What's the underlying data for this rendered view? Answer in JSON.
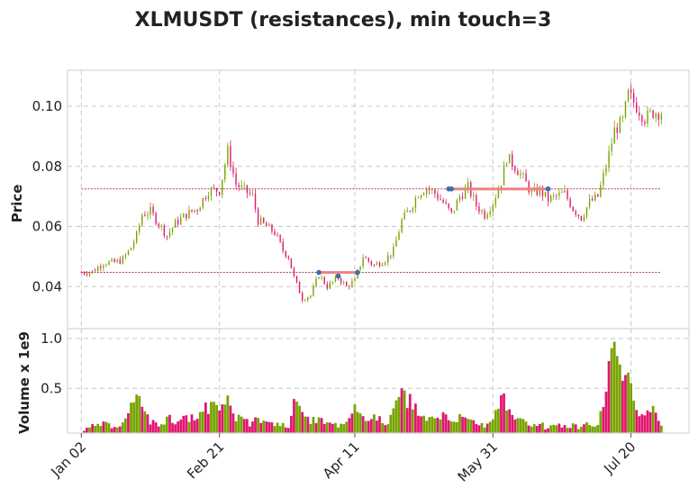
{
  "chart_data": {
    "type": "candlestick",
    "title": "XLMUSDT (resistances), min touch=3",
    "price_panel": {
      "ylabel": "Price",
      "yticks": [
        0.04,
        0.06,
        0.08,
        0.1
      ],
      "ytick_labels": [
        "0.04",
        "0.06",
        "0.08",
        "0.10"
      ],
      "ylim": [
        0.026,
        0.112
      ]
    },
    "volume_panel": {
      "ylabel": "Volume x 1e9",
      "yticks": [
        0.5,
        1.0
      ],
      "ytick_labels": [
        "0.5",
        "1.0"
      ],
      "ylim": [
        0.05,
        1.1
      ]
    },
    "x_axis": {
      "tick_labels": [
        "Jan 02",
        "Feb 21",
        "Apr 11",
        "May 31",
        "Jul 20"
      ],
      "tick_days": [
        0,
        50,
        99,
        149,
        199
      ],
      "xlim": [
        -5,
        220
      ]
    },
    "grid": true,
    "colors": {
      "up": "#77a300",
      "down": "#e0176f",
      "resistance": "#f08080",
      "level_line": "#b22222",
      "touch_point": "#3a6fa8"
    },
    "price_series": [
      {
        "day": 0,
        "close": 0.0447
      },
      {
        "day": 4,
        "close": 0.045
      },
      {
        "day": 8,
        "close": 0.048
      },
      {
        "day": 12,
        "close": 0.048
      },
      {
        "day": 15,
        "close": 0.049
      },
      {
        "day": 18,
        "close": 0.053
      },
      {
        "day": 20,
        "close": 0.057
      },
      {
        "day": 22,
        "close": 0.064
      },
      {
        "day": 25,
        "close": 0.065
      },
      {
        "day": 28,
        "close": 0.061
      },
      {
        "day": 31,
        "close": 0.057
      },
      {
        "day": 34,
        "close": 0.061
      },
      {
        "day": 38,
        "close": 0.064
      },
      {
        "day": 42,
        "close": 0.066
      },
      {
        "day": 46,
        "close": 0.072
      },
      {
        "day": 50,
        "close": 0.072
      },
      {
        "day": 53,
        "close": 0.085
      },
      {
        "day": 56,
        "close": 0.074
      },
      {
        "day": 59,
        "close": 0.072
      },
      {
        "day": 62,
        "close": 0.07
      },
      {
        "day": 64,
        "close": 0.062
      },
      {
        "day": 67,
        "close": 0.06
      },
      {
        "day": 70,
        "close": 0.058
      },
      {
        "day": 73,
        "close": 0.052
      },
      {
        "day": 75,
        "close": 0.05
      },
      {
        "day": 77,
        "close": 0.043
      },
      {
        "day": 80,
        "close": 0.036
      },
      {
        "day": 83,
        "close": 0.037
      },
      {
        "day": 86,
        "close": 0.044
      },
      {
        "day": 89,
        "close": 0.04
      },
      {
        "day": 93,
        "close": 0.043
      },
      {
        "day": 96,
        "close": 0.04
      },
      {
        "day": 99,
        "close": 0.042
      },
      {
        "day": 102,
        "close": 0.05
      },
      {
        "day": 106,
        "close": 0.047
      },
      {
        "day": 110,
        "close": 0.049
      },
      {
        "day": 113,
        "close": 0.052
      },
      {
        "day": 116,
        "close": 0.062
      },
      {
        "day": 119,
        "close": 0.066
      },
      {
        "day": 122,
        "close": 0.071
      },
      {
        "day": 125,
        "close": 0.073
      },
      {
        "day": 128,
        "close": 0.071
      },
      {
        "day": 131,
        "close": 0.068
      },
      {
        "day": 134,
        "close": 0.064
      },
      {
        "day": 137,
        "close": 0.07
      },
      {
        "day": 140,
        "close": 0.073
      },
      {
        "day": 143,
        "close": 0.067
      },
      {
        "day": 146,
        "close": 0.064
      },
      {
        "day": 149,
        "close": 0.068
      },
      {
        "day": 152,
        "close": 0.075
      },
      {
        "day": 154,
        "close": 0.083
      },
      {
        "day": 157,
        "close": 0.08
      },
      {
        "day": 160,
        "close": 0.076
      },
      {
        "day": 163,
        "close": 0.071
      },
      {
        "day": 166,
        "close": 0.072
      },
      {
        "day": 169,
        "close": 0.069
      },
      {
        "day": 172,
        "close": 0.07
      },
      {
        "day": 175,
        "close": 0.071
      },
      {
        "day": 178,
        "close": 0.066
      },
      {
        "day": 181,
        "close": 0.063
      },
      {
        "day": 184,
        "close": 0.068
      },
      {
        "day": 187,
        "close": 0.07
      },
      {
        "day": 190,
        "close": 0.08
      },
      {
        "day": 193,
        "close": 0.092
      },
      {
        "day": 196,
        "close": 0.095
      },
      {
        "day": 198,
        "close": 0.104
      },
      {
        "day": 201,
        "close": 0.1
      },
      {
        "day": 204,
        "close": 0.096
      },
      {
        "day": 207,
        "close": 0.098
      },
      {
        "day": 210,
        "close": 0.098
      }
    ],
    "volume_series": [
      {
        "day": 0,
        "volume": 0.07
      },
      {
        "day": 4,
        "volume": 0.12
      },
      {
        "day": 8,
        "volume": 0.14
      },
      {
        "day": 12,
        "volume": 0.1
      },
      {
        "day": 15,
        "volume": 0.18
      },
      {
        "day": 18,
        "volume": 0.3
      },
      {
        "day": 20,
        "volume": 0.38
      },
      {
        "day": 22,
        "volume": 0.32
      },
      {
        "day": 25,
        "volume": 0.16
      },
      {
        "day": 28,
        "volume": 0.14
      },
      {
        "day": 31,
        "volume": 0.2
      },
      {
        "day": 34,
        "volume": 0.18
      },
      {
        "day": 38,
        "volume": 0.22
      },
      {
        "day": 42,
        "volume": 0.2
      },
      {
        "day": 46,
        "volume": 0.32
      },
      {
        "day": 50,
        "volume": 0.28
      },
      {
        "day": 53,
        "volume": 0.38
      },
      {
        "day": 56,
        "volume": 0.22
      },
      {
        "day": 59,
        "volume": 0.18
      },
      {
        "day": 62,
        "volume": 0.14
      },
      {
        "day": 64,
        "volume": 0.2
      },
      {
        "day": 67,
        "volume": 0.16
      },
      {
        "day": 70,
        "volume": 0.12
      },
      {
        "day": 73,
        "volume": 0.14
      },
      {
        "day": 75,
        "volume": 0.12
      },
      {
        "day": 77,
        "volume": 0.36
      },
      {
        "day": 80,
        "volume": 0.22
      },
      {
        "day": 83,
        "volume": 0.18
      },
      {
        "day": 86,
        "volume": 0.2
      },
      {
        "day": 89,
        "volume": 0.14
      },
      {
        "day": 93,
        "volume": 0.12
      },
      {
        "day": 96,
        "volume": 0.16
      },
      {
        "day": 99,
        "volume": 0.28
      },
      {
        "day": 102,
        "volume": 0.2
      },
      {
        "day": 106,
        "volume": 0.22
      },
      {
        "day": 110,
        "volume": 0.14
      },
      {
        "day": 113,
        "volume": 0.26
      },
      {
        "day": 116,
        "volume": 0.42
      },
      {
        "day": 119,
        "volume": 0.36
      },
      {
        "day": 122,
        "volume": 0.24
      },
      {
        "day": 125,
        "volume": 0.18
      },
      {
        "day": 128,
        "volume": 0.2
      },
      {
        "day": 131,
        "volume": 0.22
      },
      {
        "day": 134,
        "volume": 0.14
      },
      {
        "day": 137,
        "volume": 0.2
      },
      {
        "day": 140,
        "volume": 0.22
      },
      {
        "day": 143,
        "volume": 0.16
      },
      {
        "day": 146,
        "volume": 0.12
      },
      {
        "day": 149,
        "volume": 0.18
      },
      {
        "day": 152,
        "volume": 0.42
      },
      {
        "day": 154,
        "volume": 0.34
      },
      {
        "day": 157,
        "volume": 0.18
      },
      {
        "day": 160,
        "volume": 0.16
      },
      {
        "day": 163,
        "volume": 0.12
      },
      {
        "day": 166,
        "volume": 0.14
      },
      {
        "day": 169,
        "volume": 0.1
      },
      {
        "day": 172,
        "volume": 0.12
      },
      {
        "day": 175,
        "volume": 0.14
      },
      {
        "day": 178,
        "volume": 0.12
      },
      {
        "day": 181,
        "volume": 0.1
      },
      {
        "day": 184,
        "volume": 0.16
      },
      {
        "day": 187,
        "volume": 0.14
      },
      {
        "day": 190,
        "volume": 0.4
      },
      {
        "day": 192,
        "volume": 0.98
      },
      {
        "day": 194,
        "volume": 0.68
      },
      {
        "day": 196,
        "volume": 0.52
      },
      {
        "day": 198,
        "volume": 0.6
      },
      {
        "day": 201,
        "volume": 0.24
      },
      {
        "day": 204,
        "volume": 0.2
      },
      {
        "day": 207,
        "volume": 0.28
      },
      {
        "day": 210,
        "volume": 0.14
      }
    ],
    "resistance_levels": [
      {
        "level": 0.0725,
        "touch_days": [
          133,
          134,
          169
        ]
      },
      {
        "level": 0.0447,
        "touch_days": [
          86,
          93,
          100
        ]
      }
    ],
    "resistance_segments": [
      {
        "level": 0.0725,
        "start_day": 133,
        "end_day": 169
      },
      {
        "level": 0.0447,
        "start_day": 86,
        "end_day": 100
      }
    ]
  }
}
